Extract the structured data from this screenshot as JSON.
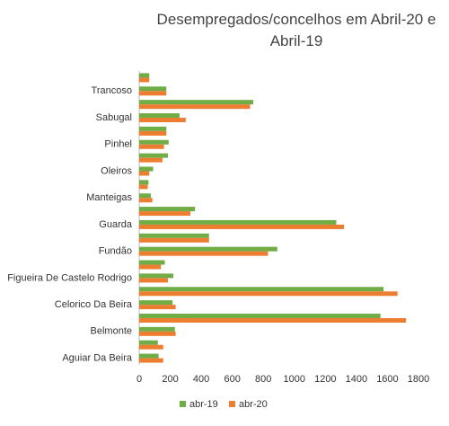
{
  "chart_data": {
    "type": "hbar",
    "title": "Desempregados/concelhos em Abril-20 e Abril-19",
    "categories": [
      "Aguiar Da Beira",
      null,
      "Belmonte",
      null,
      "Celorico Da Beira",
      null,
      "Figueira De Castelo Rodrigo",
      null,
      "Fundão",
      null,
      "Guarda",
      null,
      "Manteigas",
      null,
      "Oleiros",
      null,
      "Pinhel",
      null,
      "Sabugal",
      null,
      "Trancoso",
      null
    ],
    "series": [
      {
        "name": "abr-19",
        "color": "#70ad47",
        "values": [
          125,
          120,
          230,
          1555,
          215,
          1575,
          220,
          165,
          890,
          450,
          1270,
          360,
          75,
          60,
          90,
          185,
          190,
          175,
          260,
          735,
          175,
          65
        ]
      },
      {
        "name": "abr-20",
        "color": "#ed7d31",
        "values": [
          155,
          155,
          235,
          1720,
          235,
          1665,
          185,
          140,
          830,
          450,
          1320,
          330,
          85,
          55,
          65,
          150,
          160,
          175,
          300,
          715,
          175,
          65
        ]
      }
    ],
    "xlim": [
      0,
      1800
    ],
    "xticks": [
      0,
      200,
      400,
      600,
      800,
      1000,
      1200,
      1400,
      1600,
      1800
    ],
    "legend": "bottom"
  }
}
